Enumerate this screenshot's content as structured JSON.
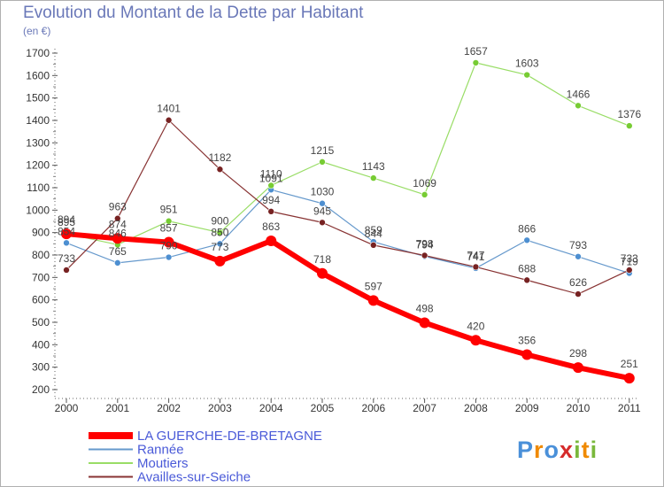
{
  "header": {
    "title": "Evolution du Montant de la Dette par Habitant",
    "unit": "(en €)"
  },
  "logo": {
    "chars": [
      "P",
      "r",
      "o",
      "x",
      "i",
      "t",
      "i"
    ],
    "colors": [
      "#4a90d9",
      "#f08a00",
      "#4a90d9",
      "#d62b2b",
      "#7ab83c",
      "#f08a00",
      "#7ab83c"
    ]
  },
  "chart_data": {
    "type": "line",
    "title": "Evolution du Montant de la Dette par Habitant",
    "ylabel": "(en €)",
    "xlabel": "",
    "x": [
      "2000",
      "2001",
      "2002",
      "2003",
      "2004",
      "2005",
      "2006",
      "2007",
      "2008",
      "2009",
      "2010",
      "2011"
    ],
    "ylim": [
      200,
      1700
    ],
    "yticks": [
      200,
      300,
      400,
      500,
      600,
      700,
      800,
      900,
      1000,
      1100,
      1200,
      1300,
      1400,
      1500,
      1600,
      1700
    ],
    "grid": false,
    "legend": "bottom-left",
    "series": [
      {
        "name": "LA GUERCHE-DE-BRETAGNE",
        "color": "#ff0000",
        "marker": "#ff0000",
        "width": 6,
        "r": 6,
        "labels": true,
        "values": [
          894,
          874,
          857,
          773,
          863,
          718,
          597,
          498,
          420,
          356,
          298,
          251
        ]
      },
      {
        "name": "Rannée",
        "color": "#6699cc",
        "marker": "#4d8fd1",
        "width": 1.2,
        "r": 3.5,
        "labels": true,
        "values": [
          854,
          765,
          790,
          850,
          1091,
          1030,
          859,
          794,
          741,
          866,
          793,
          719
        ]
      },
      {
        "name": "Moutiers",
        "color": "#99dd66",
        "marker": "#77cc33",
        "width": 1.2,
        "r": 3.5,
        "labels": true,
        "values": [
          895,
          846,
          951,
          900,
          1110,
          1215,
          1143,
          1069,
          1657,
          1603,
          1466,
          1376
        ]
      },
      {
        "name": "Availles-sur-Seiche",
        "color": "#883333",
        "marker": "#772222",
        "width": 1.2,
        "r": 3.5,
        "labels": true,
        "values": [
          733,
          963,
          1401,
          1182,
          994,
          945,
          844,
          798,
          747,
          688,
          626,
          733
        ]
      }
    ]
  }
}
